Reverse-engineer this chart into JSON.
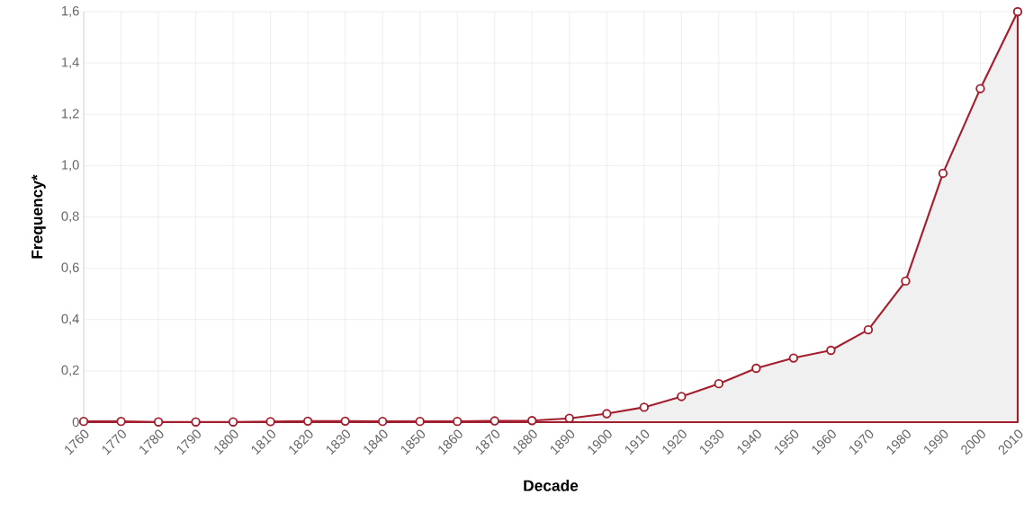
{
  "chart_data": {
    "type": "area",
    "xlabel": "Decade",
    "ylabel": "Frequency*",
    "categories": [
      "1760",
      "1770",
      "1780",
      "1790",
      "1800",
      "1810",
      "1820",
      "1830",
      "1840",
      "1850",
      "1860",
      "1870",
      "1880",
      "1890",
      "1900",
      "1910",
      "1920",
      "1930",
      "1940",
      "1950",
      "1960",
      "1970",
      "1980",
      "1990",
      "2000",
      "2010"
    ],
    "values": [
      0.003,
      0.003,
      0.001,
      0.001,
      0.001,
      0.002,
      0.004,
      0.004,
      0.003,
      0.003,
      0.003,
      0.005,
      0.006,
      0.015,
      0.033,
      0.058,
      0.1,
      0.15,
      0.21,
      0.25,
      0.28,
      0.36,
      0.55,
      0.97,
      1.3,
      1.6
    ],
    "color": "#a31f2e",
    "ylim": [
      0,
      1.6
    ],
    "yticks": [
      0,
      {
        "value": 0.2,
        "label": "0,2"
      },
      {
        "value": 0.4,
        "label": "0,4"
      },
      {
        "value": 0.6,
        "label": "0,6"
      },
      {
        "value": 0.8,
        "label": "0,8"
      },
      {
        "value": 1.0,
        "label": "1,0"
      },
      {
        "value": 1.2,
        "label": "1,2"
      },
      {
        "value": 1.4,
        "label": "1,4"
      },
      {
        "value": 1.6,
        "label": "1,6"
      }
    ],
    "grid": true,
    "marker": "circle",
    "line_style": "solid"
  }
}
